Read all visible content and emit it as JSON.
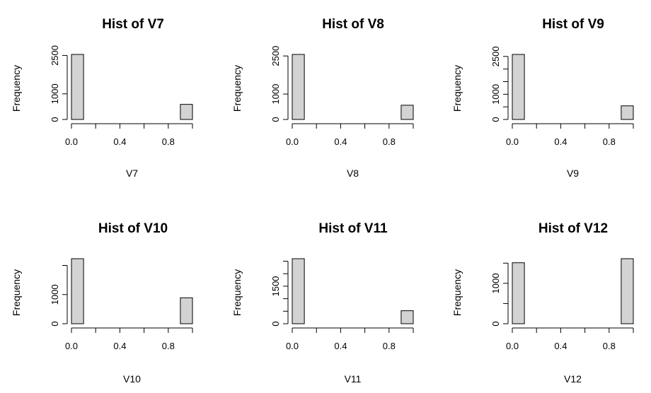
{
  "chart_data": [
    {
      "type": "bar",
      "title": "Hist of V7",
      "xlabel": "V7",
      "ylabel": "Frequency",
      "bins": [
        [
          0.0,
          0.1
        ],
        [
          0.1,
          0.2
        ],
        [
          0.2,
          0.3
        ],
        [
          0.3,
          0.4
        ],
        [
          0.4,
          0.5
        ],
        [
          0.5,
          0.6
        ],
        [
          0.6,
          0.7
        ],
        [
          0.7,
          0.8
        ],
        [
          0.8,
          0.9
        ],
        [
          0.9,
          1.0
        ]
      ],
      "values": [
        2540,
        0,
        0,
        0,
        0,
        0,
        0,
        0,
        0,
        590
      ],
      "xticks": [
        0.0,
        0.4,
        0.8
      ],
      "xtick_labels": [
        "0.0",
        "0.4",
        "0.8"
      ],
      "yticks": [
        0,
        1000,
        2500
      ],
      "ytick_labels": [
        "0",
        "1000",
        "2500"
      ],
      "ylim": [
        0,
        2540
      ]
    },
    {
      "type": "bar",
      "title": "Hist of V8",
      "xlabel": "V8",
      "ylabel": "Frequency",
      "bins": [
        [
          0.0,
          0.1
        ],
        [
          0.1,
          0.2
        ],
        [
          0.2,
          0.3
        ],
        [
          0.3,
          0.4
        ],
        [
          0.4,
          0.5
        ],
        [
          0.5,
          0.6
        ],
        [
          0.6,
          0.7
        ],
        [
          0.7,
          0.8
        ],
        [
          0.8,
          0.9
        ],
        [
          0.9,
          1.0
        ]
      ],
      "values": [
        2560,
        0,
        0,
        0,
        0,
        0,
        0,
        0,
        0,
        560
      ],
      "xticks": [
        0.0,
        0.4,
        0.8
      ],
      "xtick_labels": [
        "0.0",
        "0.4",
        "0.8"
      ],
      "yticks": [
        0,
        1000,
        2500
      ],
      "ytick_labels": [
        "0",
        "1000",
        "2500"
      ],
      "ylim": [
        0,
        2560
      ]
    },
    {
      "type": "bar",
      "title": "Hist of V9",
      "xlabel": "V9",
      "ylabel": "Frequency",
      "bins": [
        [
          0.0,
          0.1
        ],
        [
          0.1,
          0.2
        ],
        [
          0.2,
          0.3
        ],
        [
          0.3,
          0.4
        ],
        [
          0.4,
          0.5
        ],
        [
          0.5,
          0.6
        ],
        [
          0.6,
          0.7
        ],
        [
          0.7,
          0.8
        ],
        [
          0.8,
          0.9
        ],
        [
          0.9,
          1.0
        ]
      ],
      "values": [
        2580,
        0,
        0,
        0,
        0,
        0,
        0,
        0,
        0,
        540
      ],
      "xticks": [
        0.0,
        0.4,
        0.8
      ],
      "xtick_labels": [
        "0.0",
        "0.4",
        "0.8"
      ],
      "yticks": [
        0,
        500,
        1000,
        1500,
        2000,
        2500
      ],
      "ytick_labels": [
        "0",
        "",
        "1000",
        "",
        "",
        "2500"
      ],
      "ylim": [
        0,
        2580
      ]
    },
    {
      "type": "bar",
      "title": "Hist of V10",
      "xlabel": "V10",
      "ylabel": "Frequency",
      "bins": [
        [
          0.0,
          0.1
        ],
        [
          0.1,
          0.2
        ],
        [
          0.2,
          0.3
        ],
        [
          0.3,
          0.4
        ],
        [
          0.4,
          0.5
        ],
        [
          0.5,
          0.6
        ],
        [
          0.6,
          0.7
        ],
        [
          0.7,
          0.8
        ],
        [
          0.8,
          0.9
        ],
        [
          0.9,
          1.0
        ]
      ],
      "values": [
        2230,
        0,
        0,
        0,
        0,
        0,
        0,
        0,
        0,
        890
      ],
      "xticks": [
        0.0,
        0.4,
        0.8
      ],
      "xtick_labels": [
        "0.0",
        "0.4",
        "0.8"
      ],
      "yticks": [
        0,
        1000,
        2000
      ],
      "ytick_labels": [
        "0",
        "1000",
        ""
      ],
      "ylim": [
        0,
        2230
      ]
    },
    {
      "type": "bar",
      "title": "Hist of V11",
      "xlabel": "V11",
      "ylabel": "Frequency",
      "bins": [
        [
          0.0,
          0.1
        ],
        [
          0.1,
          0.2
        ],
        [
          0.2,
          0.3
        ],
        [
          0.3,
          0.4
        ],
        [
          0.4,
          0.5
        ],
        [
          0.5,
          0.6
        ],
        [
          0.6,
          0.7
        ],
        [
          0.7,
          0.8
        ],
        [
          0.8,
          0.9
        ],
        [
          0.9,
          1.0
        ]
      ],
      "values": [
        2600,
        0,
        0,
        0,
        0,
        0,
        0,
        0,
        0,
        520
      ],
      "xticks": [
        0.0,
        0.4,
        0.8
      ],
      "xtick_labels": [
        "0.0",
        "0.4",
        "0.8"
      ],
      "yticks": [
        0,
        500,
        1000,
        1500,
        2000,
        2500
      ],
      "ytick_labels": [
        "0",
        "",
        "",
        "1500",
        "",
        ""
      ],
      "ylim": [
        0,
        2600
      ]
    },
    {
      "type": "bar",
      "title": "Hist of V12",
      "xlabel": "V12",
      "ylabel": "Frequency",
      "bins": [
        [
          0.0,
          0.1
        ],
        [
          0.1,
          0.2
        ],
        [
          0.2,
          0.3
        ],
        [
          0.3,
          0.4
        ],
        [
          0.4,
          0.5
        ],
        [
          0.5,
          0.6
        ],
        [
          0.6,
          0.7
        ],
        [
          0.7,
          0.8
        ],
        [
          0.8,
          0.9
        ],
        [
          0.9,
          1.0
        ]
      ],
      "values": [
        1510,
        0,
        0,
        0,
        0,
        0,
        0,
        0,
        0,
        1610
      ],
      "xticks": [
        0.0,
        0.4,
        0.8
      ],
      "xtick_labels": [
        "0.0",
        "0.4",
        "0.8"
      ],
      "yticks": [
        0,
        500,
        1000,
        1500
      ],
      "ytick_labels": [
        "0",
        "",
        "1000",
        ""
      ],
      "ylim": [
        0,
        1610
      ]
    }
  ],
  "colors": {
    "bar_fill": "#d3d3d3",
    "bar_stroke": "#000000",
    "background": "#ffffff"
  }
}
